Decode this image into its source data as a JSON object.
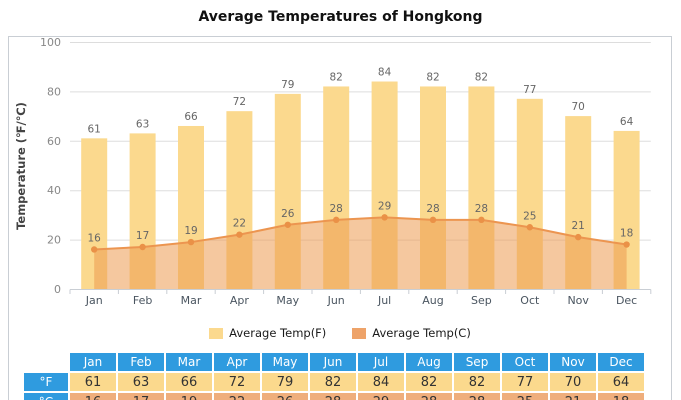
{
  "title": "Average Temperatures of Hongkong",
  "chart_data": {
    "type": "bar",
    "title": "Average Temperatures of Hongkong",
    "categories": [
      "Jan",
      "Feb",
      "Mar",
      "Apr",
      "May",
      "Jun",
      "Jul",
      "Aug",
      "Sep",
      "Oct",
      "Nov",
      "Dec"
    ],
    "series": [
      {
        "name": "Average Temp(F)",
        "type": "bar",
        "color": "#FBD98E",
        "values": [
          61,
          63,
          66,
          72,
          79,
          82,
          84,
          82,
          82,
          77,
          70,
          64
        ]
      },
      {
        "name": "Average Temp(C)",
        "type": "area-line",
        "line_color": "#EC9550",
        "marker_color": "#EA9147",
        "fill_color": "rgba(237,154,81,0.55)",
        "values": [
          16,
          17,
          19,
          22,
          26,
          28,
          29,
          28,
          28,
          25,
          21,
          18
        ]
      }
    ],
    "xlabel": "",
    "ylabel": "Temperature (℉/℃)",
    "ylim": [
      0,
      100
    ],
    "yticks": [
      0,
      20,
      40,
      60,
      80,
      100
    ],
    "grid": true,
    "legend_position": "bottom",
    "colors": {
      "grid": "#dddddd",
      "axis": "#c9ced4",
      "tick_label": "#888888",
      "month_label": "#4a5560",
      "value_label": "#666666",
      "axis_title": "#444444"
    }
  },
  "legend": {
    "items": [
      {
        "label": "Average Temp(F)",
        "color": "#FBD98E"
      },
      {
        "label": "Average Temp(C)",
        "color": "#EEA369"
      }
    ]
  },
  "table": {
    "row_labels": [
      "°F",
      "°C"
    ],
    "header_bg": "#2F9BDF",
    "row_bgs": [
      "#FBD98D",
      "#EFAE7C"
    ]
  }
}
